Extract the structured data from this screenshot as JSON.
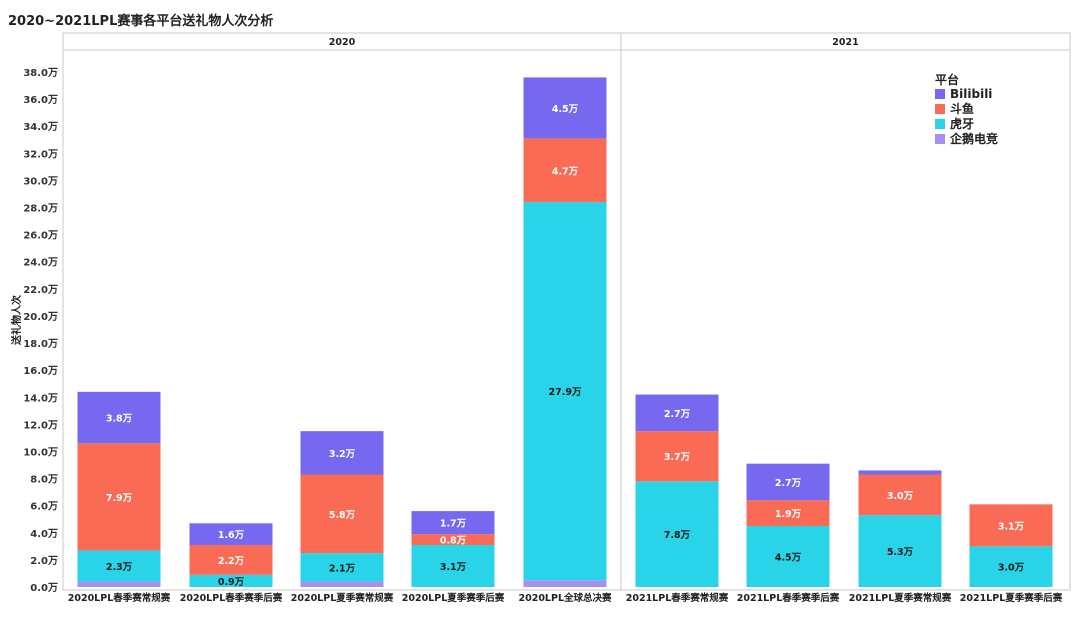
{
  "title": "2020~2021LPL赛事各平台送礼物人次分析",
  "chart_data": {
    "type": "bar",
    "stacked": true,
    "title": "2020~2021LPL赛事各平台送礼物人次分析",
    "ylabel": "送礼物人次",
    "ylim": [
      0,
      38
    ],
    "yticks": [
      "0.0万",
      "2.0万",
      "4.0万",
      "6.0万",
      "8.0万",
      "10.0万",
      "12.0万",
      "14.0万",
      "16.0万",
      "18.0万",
      "20.0万",
      "22.0万",
      "24.0万",
      "26.0万",
      "28.0万",
      "30.0万",
      "32.0万",
      "34.0万",
      "36.0万",
      "38.0万"
    ],
    "groups": [
      {
        "label": "2020",
        "categories": [
          "2020LPL春季赛常规赛",
          "2020LPL春季赛季后赛",
          "2020LPL夏季赛常规赛",
          "2020LPL夏季赛季后赛",
          "2020LPL全球总决赛"
        ]
      },
      {
        "label": "2021",
        "categories": [
          "2021LPL春季赛常规赛",
          "2021LPL春季赛季后赛",
          "2021LPL夏季赛常规赛",
          "2021LPL夏季赛季后赛"
        ]
      }
    ],
    "categories": [
      "2020LPL春季赛常规赛",
      "2020LPL春季赛季后赛",
      "2020LPL夏季赛常规赛",
      "2020LPL夏季赛季后赛",
      "2020LPL全球总决赛",
      "2021LPL春季赛常规赛",
      "2021LPL春季赛季后赛",
      "2021LPL夏季赛常规赛",
      "2021LPL夏季赛季后赛"
    ],
    "legend_title": "平台",
    "legend_position": "top-right",
    "series": [
      {
        "name": "企鹅电竞",
        "color": "#a78ff0",
        "values": [
          0.4,
          0.0,
          0.4,
          0.0,
          0.5,
          0.0,
          0.0,
          0.0,
          0.0
        ],
        "labels": [
          "",
          "",
          "",
          "",
          "",
          "",
          "",
          "",
          ""
        ]
      },
      {
        "name": "虎牙",
        "color": "#29d3e8",
        "values": [
          2.3,
          0.9,
          2.1,
          3.1,
          27.9,
          7.8,
          4.5,
          5.3,
          3.0
        ],
        "labels": [
          "2.3万",
          "0.9万",
          "2.1万",
          "3.1万",
          "27.9万",
          "7.8万",
          "4.5万",
          "5.3万",
          "3.0万"
        ]
      },
      {
        "name": "斗鱼",
        "color": "#f96b55",
        "values": [
          7.9,
          2.2,
          5.8,
          0.8,
          4.7,
          3.7,
          1.9,
          3.0,
          3.1
        ],
        "labels": [
          "7.9万",
          "2.2万",
          "5.8万",
          "0.8万",
          "4.7万",
          "3.7万",
          "1.9万",
          "3.0万",
          "3.1万"
        ]
      },
      {
        "name": "Bilibili",
        "color": "#7669f0",
        "values": [
          3.8,
          1.6,
          3.2,
          1.7,
          4.5,
          2.7,
          2.7,
          0.3,
          0.0
        ],
        "labels": [
          "3.8万",
          "1.6万",
          "3.2万",
          "1.7万",
          "4.5万",
          "2.7万",
          "2.7万",
          "",
          ""
        ]
      }
    ],
    "legend_order": [
      "Bilibili",
      "斗鱼",
      "虎牙",
      "企鹅电竞"
    ],
    "grid": false
  }
}
